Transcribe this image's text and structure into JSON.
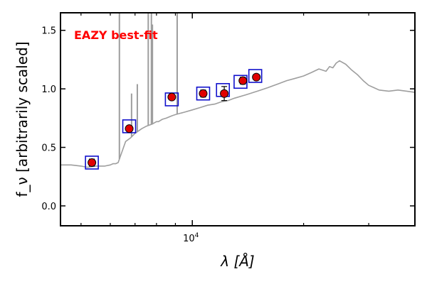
{
  "chart_data": {
    "type": "scatter",
    "title": "",
    "annotation": "EAZY best-fit",
    "xlabel": "λ [Å]",
    "ylabel": "f_ν [arbitrarily scaled]",
    "xscale": "log",
    "xlim": [
      4400,
      40000
    ],
    "ylim": [
      -0.17,
      1.65
    ],
    "yticks": [
      {
        "value": 0.0,
        "label": "0.0"
      },
      {
        "value": 0.5,
        "label": "0.5"
      },
      {
        "value": 1.0,
        "label": "1.0"
      },
      {
        "value": 1.5,
        "label": "1.5"
      }
    ],
    "xticks_major": [
      {
        "value": 10000,
        "label": "10",
        "exponent": "4"
      }
    ],
    "xticks_minor": [
      5000,
      6000,
      7000,
      8000,
      9000,
      20000,
      30000
    ],
    "grid": false,
    "colors": {
      "template": "#9e9e9e",
      "observed_fill": "#e00000",
      "model_box": "#1010cc",
      "annotation": "#ff0000"
    },
    "series": [
      {
        "role": "template",
        "x": [
          4400,
          4700,
          5000,
          5200,
          5500,
          5800,
          6000,
          6100,
          6200,
          6300,
          6350,
          6400,
          6600,
          6800,
          7000,
          7300,
          7500,
          7800,
          8000,
          8100,
          8200,
          8300,
          8500,
          8800,
          9000,
          9500,
          10000,
          10500,
          11000,
          11500,
          12000,
          12500,
          13000,
          14000,
          15000,
          16000,
          17000,
          18000,
          19000,
          20000,
          21000,
          22000,
          23000,
          23500,
          24000,
          24500,
          25000,
          26000,
          27000,
          28000,
          29000,
          30000,
          31000,
          32000,
          34000,
          36000,
          38000,
          40000
        ],
        "y": [
          0.35,
          0.35,
          0.34,
          0.33,
          0.34,
          0.34,
          0.35,
          0.36,
          0.36,
          0.37,
          0.4,
          0.43,
          0.55,
          0.58,
          0.62,
          0.66,
          0.68,
          0.7,
          0.72,
          0.72,
          0.73,
          0.74,
          0.75,
          0.77,
          0.78,
          0.8,
          0.82,
          0.84,
          0.86,
          0.87,
          0.89,
          0.9,
          0.92,
          0.95,
          0.98,
          1.01,
          1.04,
          1.07,
          1.09,
          1.11,
          1.14,
          1.17,
          1.15,
          1.19,
          1.18,
          1.22,
          1.24,
          1.21,
          1.16,
          1.12,
          1.07,
          1.03,
          1.01,
          0.99,
          0.98,
          0.99,
          0.98,
          0.97
        ]
      },
      {
        "role": "emission_lines",
        "x": [
          6350,
          6850,
          7100,
          7600,
          7750,
          7800,
          9100
        ],
        "y": [
          1.65,
          0.96,
          1.04,
          1.65,
          1.65,
          1.55,
          1.65
        ]
      },
      {
        "role": "model_photometry",
        "x": [
          5350,
          6750,
          8800,
          10700,
          12100,
          13500,
          14800
        ],
        "y": [
          0.37,
          0.68,
          0.91,
          0.96,
          0.99,
          1.06,
          1.11
        ]
      },
      {
        "role": "observed_photometry",
        "x": [
          5350,
          6750,
          8800,
          10700,
          12200,
          13700,
          14900
        ],
        "y": [
          0.37,
          0.66,
          0.93,
          0.96,
          0.96,
          1.07,
          1.1
        ],
        "err": [
          0.03,
          0.02,
          0.02,
          0.03,
          0.06,
          0.03,
          0.02
        ]
      }
    ]
  }
}
